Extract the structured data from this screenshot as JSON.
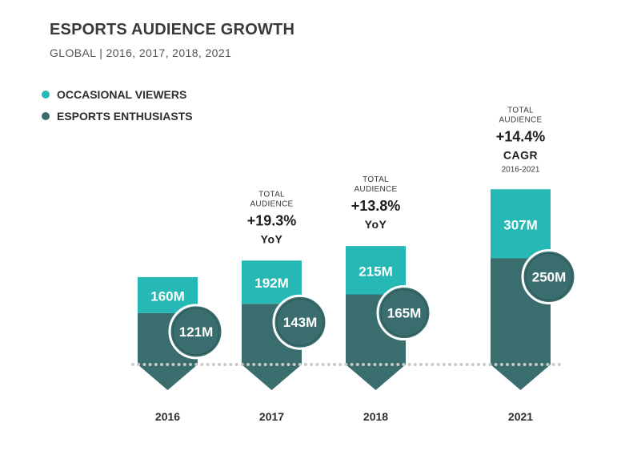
{
  "chart_data": {
    "type": "bar",
    "title": "ESPORTS AUDIENCE GROWTH",
    "subtitle": "GLOBAL | 2016, 2017, 2018, 2021",
    "categories": [
      "2016",
      "2017",
      "2018",
      "2021"
    ],
    "series": [
      {
        "name": "OCCASIONAL VIEWERS",
        "values": [
          160,
          192,
          215,
          307
        ],
        "labels": [
          "160M",
          "192M",
          "215M",
          "307M"
        ],
        "color": "#26b8b5"
      },
      {
        "name": "ESPORTS ENTHUSIASTS",
        "values": [
          121,
          143,
          165,
          250
        ],
        "labels": [
          "121M",
          "143M",
          "165M",
          "250M"
        ],
        "color": "#3a6e6e"
      }
    ],
    "annotations": [
      {
        "category": "2017",
        "heading": "TOTAL AUDIENCE",
        "value": "+19.3%",
        "label": "YoY",
        "note": ""
      },
      {
        "category": "2018",
        "heading": "TOTAL AUDIENCE",
        "value": "+13.8%",
        "label": "YoY",
        "note": ""
      },
      {
        "category": "2021",
        "heading": "TOTAL AUDIENCE",
        "value": "+14.4%",
        "label": "CAGR",
        "note": "2016-2021"
      }
    ],
    "stacked": true,
    "ylim": [
      0,
      557
    ]
  },
  "colors": {
    "occasional": "#26b8b5",
    "enthusiast": "#3a6e6e",
    "dots": "#c9c9c9",
    "text": "#2e2e2e"
  }
}
